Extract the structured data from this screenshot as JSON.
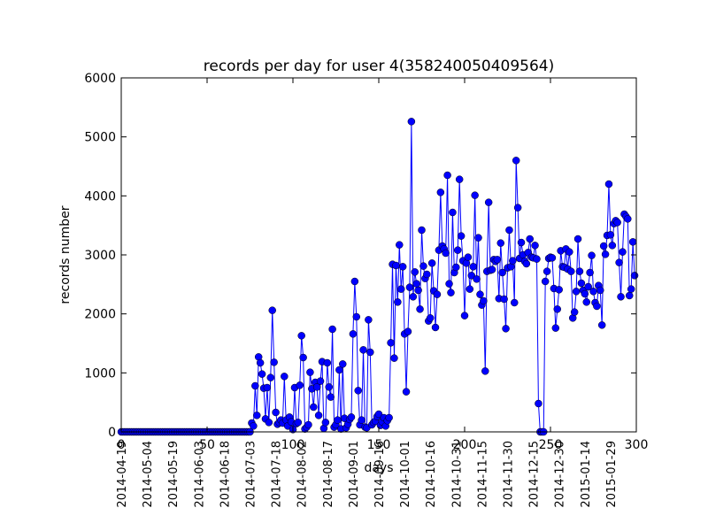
{
  "chart_data": {
    "type": "line",
    "title": "records per day for user 4(358240050409564)",
    "x_label": "days",
    "y_label": "records number",
    "xlim": [
      0,
      300
    ],
    "ylim": [
      0,
      6000
    ],
    "xticks": [
      0,
      50,
      100,
      150,
      200,
      250,
      300
    ],
    "yticks": [
      0,
      1000,
      2000,
      3000,
      4000,
      5000,
      6000
    ],
    "x2ticks": [
      {
        "value": 0,
        "label": "2014-04-19"
      },
      {
        "value": 15,
        "label": "2014-05-04"
      },
      {
        "value": 30,
        "label": "2014-05-19"
      },
      {
        "value": 45,
        "label": "2014-06-03"
      },
      {
        "value": 60,
        "label": "2014-06-18"
      },
      {
        "value": 75,
        "label": "2014-07-03"
      },
      {
        "value": 90,
        "label": "2014-07-18"
      },
      {
        "value": 105,
        "label": "2014-08-02"
      },
      {
        "value": 120,
        "label": "2014-08-17"
      },
      {
        "value": 135,
        "label": "2014-09-01"
      },
      {
        "value": 150,
        "label": "2014-09-16"
      },
      {
        "value": 165,
        "label": "2014-10-01"
      },
      {
        "value": 180,
        "label": "2014-10-16"
      },
      {
        "value": 195,
        "label": "2014-10-31"
      },
      {
        "value": 210,
        "label": "2014-11-15"
      },
      {
        "value": 225,
        "label": "2014-11-30"
      },
      {
        "value": 240,
        "label": "2014-12-15"
      },
      {
        "value": 255,
        "label": "2014-12-30"
      },
      {
        "value": 270,
        "label": "2015-01-14"
      },
      {
        "value": 285,
        "label": "2015-01-29"
      }
    ],
    "x": [
      0,
      1,
      2,
      3,
      4,
      5,
      6,
      7,
      8,
      9,
      10,
      11,
      12,
      13,
      14,
      15,
      16,
      17,
      18,
      19,
      20,
      21,
      22,
      23,
      24,
      25,
      26,
      27,
      28,
      29,
      30,
      31,
      32,
      33,
      34,
      35,
      36,
      37,
      38,
      39,
      40,
      41,
      42,
      43,
      44,
      45,
      46,
      47,
      48,
      49,
      50,
      51,
      52,
      53,
      54,
      55,
      56,
      57,
      58,
      59,
      60,
      61,
      62,
      63,
      64,
      65,
      66,
      67,
      68,
      69,
      70,
      71,
      72,
      73,
      74,
      75,
      76,
      77,
      78,
      79,
      80,
      81,
      82,
      83,
      84,
      85,
      86,
      87,
      88,
      89,
      90,
      91,
      92,
      93,
      94,
      95,
      96,
      97,
      98,
      99,
      100,
      101,
      102,
      103,
      104,
      105,
      106,
      107,
      108,
      109,
      110,
      111,
      112,
      113,
      114,
      115,
      116,
      117,
      118,
      119,
      120,
      121,
      122,
      123,
      124,
      125,
      126,
      127,
      128,
      129,
      130,
      131,
      132,
      133,
      134,
      135,
      136,
      137,
      138,
      139,
      140,
      141,
      142,
      143,
      144,
      145,
      146,
      147,
      148,
      149,
      150,
      151,
      152,
      153,
      154,
      155,
      156,
      157,
      158,
      159,
      160,
      161,
      162,
      163,
      164,
      165,
      166,
      167,
      168,
      169,
      170,
      171,
      172,
      173,
      174,
      175,
      176,
      177,
      178,
      179,
      180,
      181,
      182,
      183,
      184,
      185,
      186,
      187,
      188,
      189,
      190,
      191,
      192,
      193,
      194,
      195,
      196,
      197,
      198,
      199,
      200,
      201,
      202,
      203,
      204,
      205,
      206,
      207,
      208,
      209,
      210,
      211,
      212,
      213,
      214,
      215,
      216,
      217,
      218,
      219,
      220,
      221,
      222,
      223,
      224,
      225,
      226,
      227,
      228,
      229,
      230,
      231,
      232,
      233,
      234,
      235,
      236,
      237,
      238,
      239,
      240,
      241,
      242,
      243,
      244,
      245,
      246,
      247,
      248,
      249,
      250,
      251,
      252,
      253,
      254,
      255,
      256,
      257,
      258,
      259,
      260,
      261,
      262,
      263,
      264,
      265,
      266,
      267,
      268,
      269,
      270,
      271,
      272,
      273,
      274,
      275,
      276,
      277,
      278,
      279,
      280,
      281,
      282,
      283,
      284,
      285,
      286,
      287,
      288,
      289,
      290,
      291,
      292,
      293,
      294,
      295,
      296,
      297,
      298,
      299
    ],
    "color": "#0000ff",
    "values": [
      0,
      0,
      0,
      0,
      0,
      0,
      0,
      0,
      0,
      0,
      0,
      0,
      0,
      0,
      0,
      0,
      0,
      0,
      0,
      0,
      0,
      0,
      0,
      0,
      0,
      0,
      0,
      0,
      0,
      0,
      0,
      0,
      0,
      0,
      0,
      0,
      0,
      0,
      0,
      0,
      0,
      0,
      0,
      0,
      0,
      0,
      0,
      0,
      0,
      0,
      0,
      0,
      0,
      0,
      0,
      0,
      0,
      0,
      0,
      0,
      0,
      0,
      0,
      0,
      0,
      0,
      0,
      0,
      0,
      0,
      0,
      0,
      0,
      0,
      0,
      0,
      150,
      100,
      780,
      280,
      1270,
      1170,
      980,
      740,
      220,
      750,
      160,
      920,
      2060,
      1180,
      330,
      130,
      160,
      200,
      150,
      940,
      200,
      100,
      250,
      170,
      40,
      750,
      140,
      160,
      790,
      1630,
      1260,
      50,
      80,
      120,
      1010,
      730,
      420,
      840,
      760,
      280,
      860,
      1190,
      60,
      160,
      1170,
      760,
      590,
      1740,
      80,
      120,
      200,
      1050,
      50,
      1150,
      230,
      70,
      130,
      210,
      250,
      1660,
      2550,
      1950,
      700,
      120,
      200,
      1390,
      80,
      70,
      1900,
      1350,
      120,
      160,
      180,
      260,
      300,
      110,
      170,
      240,
      100,
      190,
      240,
      1510,
      2840,
      1250,
      2820,
      2200,
      3170,
      2420,
      2800,
      1660,
      680,
      1700,
      2450,
      5260,
      2290,
      2710,
      2510,
      2400,
      2080,
      3420,
      2810,
      2600,
      2670,
      1880,
      1930,
      2860,
      2390,
      1770,
      2330,
      3080,
      4060,
      3150,
      3100,
      3030,
      4350,
      2510,
      2360,
      3720,
      2700,
      2790,
      3080,
      4280,
      3320,
      2900,
      1970,
      2860,
      2960,
      2420,
      2650,
      2800,
      4010,
      2590,
      3290,
      2330,
      2150,
      2220,
      1030,
      2720,
      3890,
      2740,
      2750,
      2920,
      2890,
      2920,
      2260,
      3200,
      2700,
      2250,
      1750,
      2780,
      3420,
      2800,
      2900,
      2190,
      4600,
      3800,
      2940,
      3210,
      3000,
      2890,
      2850,
      3040,
      3270,
      2960,
      2950,
      3160,
      2930,
      480,
      0,
      0,
      0,
      2550,
      2720,
      2940,
      2960,
      2950,
      2430,
      1760,
      2080,
      2410,
      3070,
      2800,
      2790,
      3100,
      2760,
      3050,
      2720,
      1930,
      2030,
      2380,
      3270,
      2720,
      2520,
      2400,
      2340,
      2200,
      2460,
      2700,
      2990,
      2380,
      2190,
      2130,
      2480,
      2400,
      1810,
      3150,
      3010,
      3330,
      4200,
      3340,
      3160,
      3530,
      3580,
      3550,
      2870,
      2290,
      3050,
      3690,
      3650,
      3610,
      2310,
      2420,
      3220,
      2650
    ]
  }
}
